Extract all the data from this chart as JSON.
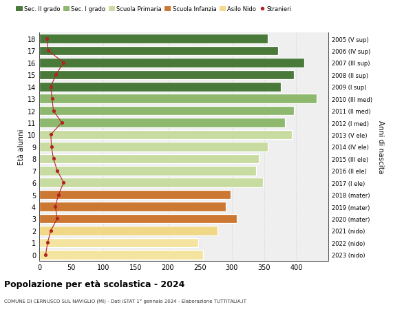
{
  "ages": [
    0,
    1,
    2,
    3,
    4,
    5,
    6,
    7,
    8,
    9,
    10,
    11,
    12,
    13,
    14,
    15,
    16,
    17,
    18
  ],
  "years": [
    "2023 (nido)",
    "2022 (nido)",
    "2021 (nido)",
    "2020 (mater)",
    "2019 (mater)",
    "2018 (mater)",
    "2017 (I ele)",
    "2016 (II ele)",
    "2015 (III ele)",
    "2014 (IV ele)",
    "2013 (V ele)",
    "2012 (I med)",
    "2011 (II med)",
    "2010 (III med)",
    "2009 (I sup)",
    "2008 (II sup)",
    "2007 (III sup)",
    "2006 (IV sup)",
    "2005 (V sup)"
  ],
  "bar_values": [
    255,
    248,
    278,
    308,
    290,
    298,
    348,
    338,
    342,
    356,
    393,
    383,
    396,
    432,
    376,
    396,
    412,
    372,
    356
  ],
  "stranieri": [
    10,
    13,
    18,
    28,
    25,
    30,
    38,
    28,
    22,
    19,
    18,
    35,
    22,
    20,
    18,
    26,
    38,
    14,
    12
  ],
  "bar_color_sec2": "#4a7a3a",
  "bar_color_sec1": "#8db86e",
  "bar_color_prim": "#c8dba0",
  "bar_color_inf": "#cc7832",
  "bar_color_nido_light": "#f5e4a0",
  "bar_color_nido_mid": "#f0d888",
  "legend_labels": [
    "Sec. II grado",
    "Sec. I grado",
    "Scuola Primaria",
    "Scuola Infanzia",
    "Asilo Nido",
    "Stranieri"
  ],
  "legend_colors": [
    "#4a7a3a",
    "#8db86e",
    "#c8dba0",
    "#cc7832",
    "#f5d98e",
    "#b22222"
  ],
  "ylabel_left": "Età alunni",
  "ylabel_right": "Anni di nascita",
  "title": "Popolazione per età scolastica - 2024",
  "subtitle": "COMUNE DI CERNUSCO SUL NAVIGLIO (MI) - Dati ISTAT 1° gennaio 2024 - Elaborazione TUTTITALIA.IT",
  "xlim_max": 450,
  "xticks": [
    0,
    50,
    100,
    150,
    200,
    250,
    300,
    350,
    400
  ],
  "stranieri_color": "#b22222",
  "background_color": "#ffffff",
  "plot_bg": "#efefef",
  "bar_height": 0.78,
  "grid_color": "#d8d8d8"
}
